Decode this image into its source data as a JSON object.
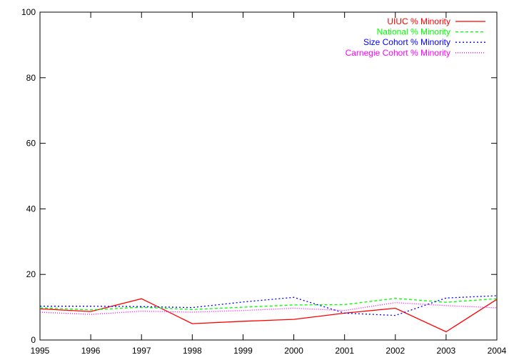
{
  "chart_data": {
    "type": "line",
    "title": "",
    "xlabel": "",
    "ylabel": "",
    "x": [
      1995,
      1996,
      1997,
      1998,
      1999,
      2000,
      2001,
      2002,
      2003,
      2004
    ],
    "xlim": [
      1995,
      2004
    ],
    "ylim": [
      0,
      100
    ],
    "xticks": [
      "1995",
      "1996",
      "1997",
      "1998",
      "1999",
      "2000",
      "2001",
      "2002",
      "2003",
      "2004"
    ],
    "yticks": [
      "0",
      "20",
      "40",
      "60",
      "80",
      "100"
    ],
    "grid": false,
    "legend_position": "top-right",
    "series": [
      {
        "name": "UIUC % Minority",
        "color": "#ff0000",
        "dash": "solid",
        "values": [
          9.5,
          8.7,
          12.6,
          5.0,
          5.7,
          6.3,
          8.2,
          9.7,
          2.5,
          12.4
        ]
      },
      {
        "name": "National % Minority",
        "color": "#00ff00",
        "dash": "dashed",
        "values": [
          9.8,
          9.2,
          10.0,
          9.3,
          10.0,
          10.7,
          10.8,
          12.7,
          11.5,
          12.6
        ]
      },
      {
        "name": "Size Cohort % Minority",
        "color": "#0000ff",
        "dash": "dotted",
        "values": [
          10.3,
          10.3,
          10.2,
          9.9,
          11.6,
          13.0,
          8.2,
          7.5,
          12.8,
          13.5
        ]
      },
      {
        "name": "Carnegie Cohort % Minority",
        "color": "#ff00ff",
        "dash": "finedotted",
        "values": [
          8.5,
          7.8,
          8.8,
          8.5,
          9.0,
          9.7,
          9.0,
          11.4,
          10.5,
          9.8
        ]
      }
    ]
  }
}
